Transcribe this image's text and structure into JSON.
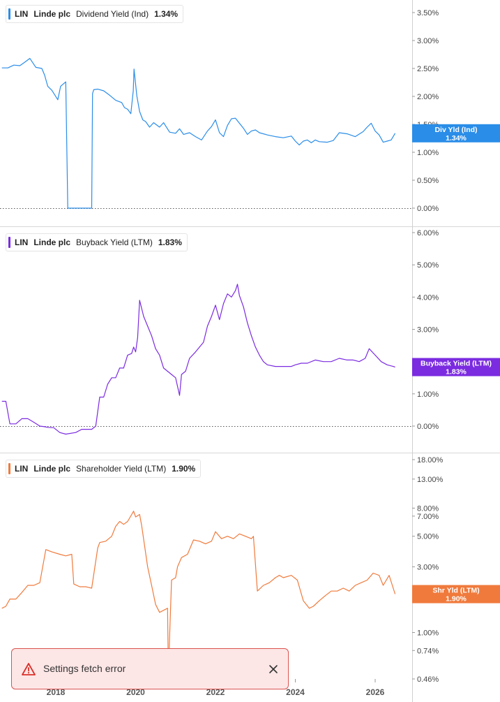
{
  "colors": {
    "dividend": "#2a8de8",
    "buyback": "#7b2be0",
    "shareholder": "#f07a3c"
  },
  "legends": [
    {
      "ticker": "LIN",
      "company": "Linde plc",
      "metric": "Dividend Yield (Ind)",
      "value": "1.34%"
    },
    {
      "ticker": "LIN",
      "company": "Linde plc",
      "metric": "Buyback Yield (LTM)",
      "value": "1.83%"
    },
    {
      "ticker": "LIN",
      "company": "Linde plc",
      "metric": "Shareholder Yield (LTM)",
      "value": "1.90%"
    }
  ],
  "toast": {
    "message": "Settings fetch error",
    "icon": "warning-icon",
    "close_icon": "close-icon"
  },
  "chart_data": [
    {
      "type": "line",
      "series_label": "Dividend Yield (Ind)",
      "yticks": [
        "3.50%",
        "3.00%",
        "2.50%",
        "2.00%",
        "1.50%",
        "1.00%",
        "0.50%",
        "0.00%"
      ],
      "ytick_values": [
        3.5,
        3.0,
        2.5,
        2.0,
        1.5,
        1.0,
        0.5,
        0.0
      ],
      "ylim": [
        0,
        3.7
      ],
      "zero_line": true,
      "marker": {
        "line1": "Div Yld (Ind)",
        "line2": "1.34%",
        "value": 1.34
      },
      "x": [
        2016.65,
        2016.8,
        2016.95,
        2017.1,
        2017.2,
        2017.35,
        2017.5,
        2017.65,
        2017.72,
        2017.8,
        2017.9,
        2017.98,
        2018.05,
        2018.12,
        2018.25,
        2018.3,
        2018.6,
        2018.9,
        2018.92,
        2018.95,
        2019.05,
        2019.2,
        2019.35,
        2019.5,
        2019.65,
        2019.72,
        2019.8,
        2019.88,
        2019.94,
        2019.96,
        2020.03,
        2020.1,
        2020.18,
        2020.25,
        2020.35,
        2020.45,
        2020.6,
        2020.7,
        2020.85,
        2021.0,
        2021.1,
        2021.2,
        2021.35,
        2021.5,
        2021.65,
        2021.8,
        2021.9,
        2022.0,
        2022.1,
        2022.2,
        2022.3,
        2022.4,
        2022.5,
        2022.6,
        2022.7,
        2022.8,
        2022.9,
        2023.0,
        2023.1,
        2023.3,
        2023.5,
        2023.7,
        2023.9,
        2024.0,
        2024.1,
        2024.2,
        2024.3,
        2024.4,
        2024.5,
        2024.6,
        2024.8,
        2024.95,
        2025.1,
        2025.3,
        2025.5,
        2025.7,
        2025.8,
        2025.9,
        2026.0,
        2026.1,
        2026.2,
        2026.3,
        2026.4,
        2026.5
      ],
      "y": [
        2.51,
        2.51,
        2.56,
        2.55,
        2.6,
        2.68,
        2.52,
        2.5,
        2.38,
        2.18,
        2.11,
        2.02,
        1.94,
        2.18,
        2.26,
        0.0,
        0.0,
        0.0,
        2.05,
        2.12,
        2.13,
        2.1,
        2.02,
        1.93,
        1.89,
        1.8,
        1.77,
        1.69,
        2.1,
        2.49,
        2.01,
        1.73,
        1.58,
        1.55,
        1.45,
        1.53,
        1.45,
        1.53,
        1.36,
        1.34,
        1.42,
        1.32,
        1.35,
        1.28,
        1.22,
        1.38,
        1.46,
        1.58,
        1.35,
        1.28,
        1.48,
        1.6,
        1.61,
        1.52,
        1.43,
        1.32,
        1.38,
        1.4,
        1.35,
        1.31,
        1.28,
        1.26,
        1.29,
        1.2,
        1.13,
        1.2,
        1.22,
        1.17,
        1.22,
        1.19,
        1.18,
        1.21,
        1.35,
        1.33,
        1.28,
        1.37,
        1.45,
        1.52,
        1.38,
        1.31,
        1.18,
        1.2,
        1.22,
        1.34
      ]
    },
    {
      "type": "line",
      "series_label": "Buyback Yield (LTM)",
      "yticks": [
        "6.00%",
        "5.00%",
        "4.00%",
        "3.00%",
        "1.00%",
        "0.00%"
      ],
      "ytick_values": [
        6.0,
        5.0,
        4.0,
        3.0,
        1.0,
        0.0
      ],
      "ylim": [
        -0.35,
        6.1
      ],
      "zero_line": true,
      "marker": {
        "line1": "Buyback Yield (LTM)",
        "line2": "1.83%",
        "value": 1.83
      },
      "x": [
        2016.65,
        2016.75,
        2016.85,
        2017.0,
        2017.15,
        2017.3,
        2017.45,
        2017.6,
        2017.72,
        2017.8,
        2017.95,
        2018.1,
        2018.25,
        2018.5,
        2018.65,
        2018.75,
        2018.9,
        2019.0,
        2019.1,
        2019.2,
        2019.3,
        2019.4,
        2019.5,
        2019.6,
        2019.7,
        2019.8,
        2019.9,
        2019.95,
        2020.0,
        2020.05,
        2020.1,
        2020.2,
        2020.3,
        2020.4,
        2020.5,
        2020.6,
        2020.7,
        2020.8,
        2020.9,
        2021.0,
        2021.1,
        2021.15,
        2021.25,
        2021.35,
        2021.5,
        2021.6,
        2021.7,
        2021.8,
        2021.9,
        2022.0,
        2022.1,
        2022.2,
        2022.3,
        2022.4,
        2022.5,
        2022.55,
        2022.6,
        2022.7,
        2022.8,
        2022.9,
        2023.0,
        2023.1,
        2023.2,
        2023.3,
        2023.5,
        2023.7,
        2023.9,
        2024.0,
        2024.15,
        2024.3,
        2024.5,
        2024.7,
        2024.9,
        2025.1,
        2025.3,
        2025.45,
        2025.6,
        2025.75,
        2025.85,
        2026.0,
        2026.15,
        2026.3,
        2026.45,
        2026.5
      ],
      "y": [
        0.77,
        0.77,
        0.07,
        0.07,
        0.23,
        0.23,
        0.12,
        0.0,
        -0.02,
        -0.04,
        -0.05,
        -0.2,
        -0.25,
        -0.2,
        -0.1,
        -0.1,
        -0.1,
        0.0,
        0.9,
        0.9,
        1.3,
        1.5,
        1.5,
        1.8,
        1.8,
        2.2,
        2.25,
        2.45,
        2.3,
        2.75,
        3.9,
        3.4,
        3.1,
        2.8,
        2.4,
        2.2,
        1.8,
        1.7,
        1.6,
        1.5,
        0.95,
        1.6,
        1.7,
        2.1,
        2.3,
        2.45,
        2.6,
        3.1,
        3.4,
        3.75,
        3.3,
        3.8,
        4.1,
        4.0,
        4.2,
        4.4,
        4.05,
        3.7,
        3.2,
        2.8,
        2.45,
        2.2,
        2.0,
        1.9,
        1.85,
        1.85,
        1.85,
        1.9,
        1.95,
        1.95,
        2.05,
        2.0,
        2.0,
        2.1,
        2.05,
        2.05,
        2.0,
        2.1,
        2.4,
        2.2,
        2.0,
        1.9,
        1.85,
        1.83
      ]
    },
    {
      "type": "line",
      "series_label": "Shareholder Yield (LTM)",
      "log_scale": true,
      "yticks": [
        "18.00%",
        "13.00%",
        "8.00%",
        "7.00%",
        "5.00%",
        "3.00%",
        "1.00%",
        "0.74%",
        "0.46%"
      ],
      "ytick_values": [
        18.0,
        13.0,
        8.0,
        7.0,
        5.0,
        3.0,
        1.0,
        0.74,
        0.46
      ],
      "ylim": [
        0.44,
        20.0
      ],
      "zero_line": false,
      "marker": {
        "line1": "Shr Yld (LTM)",
        "line2": "1.90%",
        "value": 1.9
      },
      "x": [
        2016.65,
        2016.75,
        2016.85,
        2017.0,
        2017.15,
        2017.3,
        2017.45,
        2017.6,
        2017.75,
        2017.9,
        2018.1,
        2018.25,
        2018.4,
        2018.45,
        2018.6,
        2018.75,
        2018.9,
        2019.05,
        2019.1,
        2019.25,
        2019.4,
        2019.5,
        2019.6,
        2019.7,
        2019.8,
        2019.95,
        2020.0,
        2020.1,
        2020.15,
        2020.3,
        2020.4,
        2020.5,
        2020.6,
        2020.7,
        2020.8,
        2020.82,
        2020.9,
        2021.0,
        2021.05,
        2021.15,
        2021.3,
        2021.45,
        2021.6,
        2021.75,
        2021.9,
        2022.0,
        2022.15,
        2022.3,
        2022.45,
        2022.6,
        2022.75,
        2022.9,
        2022.95,
        2023.05,
        2023.2,
        2023.35,
        2023.5,
        2023.6,
        2023.7,
        2023.9,
        2024.05,
        2024.2,
        2024.35,
        2024.45,
        2024.6,
        2024.75,
        2024.9,
        2025.05,
        2025.2,
        2025.35,
        2025.5,
        2025.65,
        2025.8,
        2025.95,
        2026.1,
        2026.2,
        2026.35,
        2026.5
      ],
      "y": [
        1.5,
        1.55,
        1.75,
        1.75,
        1.95,
        2.2,
        2.2,
        2.3,
        4.0,
        3.85,
        3.7,
        3.6,
        3.7,
        2.25,
        2.15,
        2.15,
        2.1,
        4.1,
        4.5,
        4.6,
        5.0,
        5.9,
        6.4,
        6.1,
        6.4,
        7.6,
        6.9,
        7.2,
        6.0,
        3.0,
        2.2,
        1.6,
        1.4,
        1.45,
        1.5,
        0.5,
        2.4,
        2.5,
        3.0,
        3.5,
        3.7,
        4.7,
        4.6,
        4.4,
        4.6,
        5.4,
        4.8,
        5.0,
        4.8,
        5.2,
        5.0,
        4.8,
        5.0,
        2.0,
        2.2,
        2.3,
        2.5,
        2.6,
        2.5,
        2.6,
        2.4,
        1.7,
        1.5,
        1.55,
        1.7,
        1.85,
        2.0,
        2.0,
        2.1,
        2.0,
        2.2,
        2.3,
        2.4,
        2.7,
        2.6,
        2.2,
        2.6,
        1.9
      ]
    }
  ],
  "xaxis": {
    "ticks": [
      "2018",
      "2020",
      "2022",
      "2024",
      "2026"
    ],
    "values": [
      2018,
      2020,
      2022,
      2024,
      2026
    ]
  }
}
